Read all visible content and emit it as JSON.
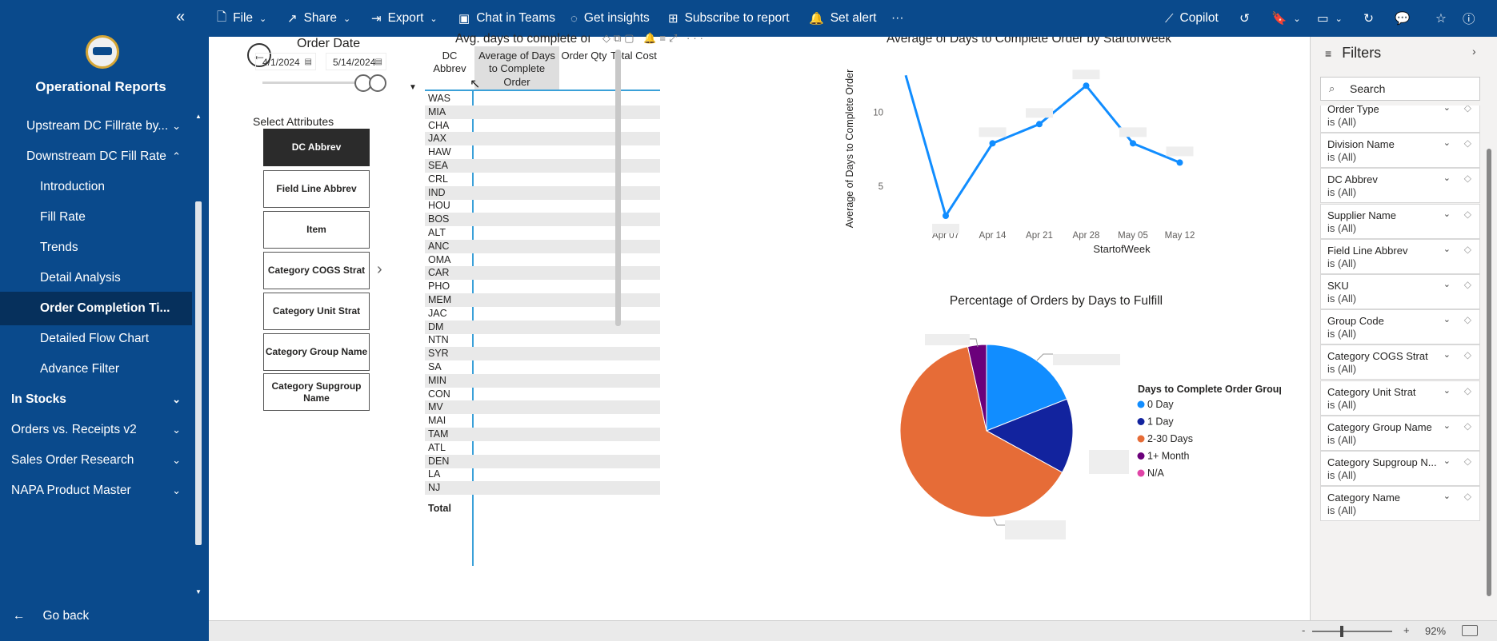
{
  "sidebar": {
    "collapse_glyph": "«",
    "app_title": "Operational Reports",
    "items": [
      {
        "label": "Upstream DC Fillrate by...",
        "indent": 1,
        "chev": "⌄",
        "active": false,
        "bold": false
      },
      {
        "label": "Downstream DC Fill Rate",
        "indent": 1,
        "chev": "⌃",
        "active": false,
        "bold": false
      },
      {
        "label": "Introduction",
        "indent": 2,
        "chev": "",
        "active": false,
        "bold": false
      },
      {
        "label": "Fill Rate",
        "indent": 2,
        "chev": "",
        "active": false,
        "bold": false
      },
      {
        "label": "Trends",
        "indent": 2,
        "chev": "",
        "active": false,
        "bold": false
      },
      {
        "label": "Detail Analysis",
        "indent": 2,
        "chev": "",
        "active": false,
        "bold": false
      },
      {
        "label": "Order Completion Ti...",
        "indent": 2,
        "chev": "",
        "active": true,
        "bold": true
      },
      {
        "label": "Detailed Flow Chart",
        "indent": 2,
        "chev": "",
        "active": false,
        "bold": false
      },
      {
        "label": "Advance Filter",
        "indent": 2,
        "chev": "",
        "active": false,
        "bold": false
      },
      {
        "label": "In Stocks",
        "indent": 0,
        "chev": "⌄",
        "active": false,
        "bold": true
      },
      {
        "label": "Orders vs. Receipts v2",
        "indent": 0,
        "chev": "⌄",
        "active": false,
        "bold": false
      },
      {
        "label": "Sales Order Research",
        "indent": 0,
        "chev": "⌄",
        "active": false,
        "bold": false
      },
      {
        "label": "NAPA Product Master",
        "indent": 0,
        "chev": "⌄",
        "active": false,
        "bold": false
      }
    ],
    "go_back": "Go back"
  },
  "toolbar": {
    "file": "File",
    "share": "Share",
    "export": "Export",
    "chat_in_teams": "Chat in Teams",
    "get_insights": "Get insights",
    "subscribe": "Subscribe to report",
    "set_alert": "Set alert",
    "more": "···",
    "copilot": "Copilot"
  },
  "slicer": {
    "title": "Order Date",
    "start_date": "4/1/2024",
    "end_date": "5/14/2024"
  },
  "attributes": {
    "title": "Select Attributes",
    "buttons": [
      {
        "label": "DC Abbrev",
        "selected": true
      },
      {
        "label": "Field Line Abbrev",
        "selected": false
      },
      {
        "label": "Item",
        "selected": false
      },
      {
        "label": "Category COGS Strat",
        "selected": false
      },
      {
        "label": "Category Unit Strat",
        "selected": false
      },
      {
        "label": "Category Group Name",
        "selected": false
      },
      {
        "label": "Category Supgroup Name",
        "selected": false
      }
    ]
  },
  "table": {
    "title": "Avg. days to complete oı",
    "toolbar_glyphs": "◇⧉▢ 🔔≡⤢",
    "more_glyph": "···",
    "headers": {
      "dc": "DC Abbrev",
      "avg": "Average of Days to Complete Order",
      "qty": "Order Qty",
      "cost": "Total Cost"
    },
    "rows": [
      "WAS",
      "MIA",
      "CHA",
      "JAX",
      "HAW",
      "SEA",
      "CRL",
      "IND",
      "HOU",
      "BOS",
      "ALT",
      "ANC",
      "OMA",
      "CAR",
      "PHO",
      "MEM",
      "JAC",
      "DM",
      "NTN",
      "SYR",
      "SA",
      "MIN",
      "CON",
      "MV",
      "MAI",
      "TAM",
      "ATL",
      "DEN",
      "LA",
      "NJ"
    ],
    "total": "Total"
  },
  "chart_data": [
    {
      "type": "line",
      "title": "Average of Days to Complete Order by StartofWeek",
      "xlabel": "StartofWeek",
      "ylabel": "Average of Days to Complete Order",
      "categories": [
        "Apr 07",
        "Apr 14",
        "Apr 21",
        "Apr 28",
        "May 05",
        "May 12"
      ],
      "x_start_value": 12.5,
      "values": [
        3.0,
        7.9,
        9.2,
        11.8,
        7.9,
        6.6
      ],
      "yticks": [
        5,
        10
      ],
      "ylim": [
        2,
        13
      ],
      "color": "#118dff",
      "grid": false
    },
    {
      "type": "pie",
      "title": "Percentage of Orders by Days to Fulfill",
      "legend_title": "Days to Complete Order Group",
      "legend_position": "right",
      "slices": [
        {
          "label": "0 Day",
          "value": 19,
          "color": "#118dff"
        },
        {
          "label": "1 Day",
          "value": 14,
          "color": "#12239e"
        },
        {
          "label": "2-30 Days",
          "value": 63.5,
          "color": "#e66c37"
        },
        {
          "label": "1+ Month",
          "value": 3.5,
          "color": "#6b007b"
        },
        {
          "label": "N/A",
          "value": 0,
          "color": "#e044a7"
        }
      ]
    }
  ],
  "filters": {
    "title": "Filters",
    "search_placeholder": "Search",
    "cards": [
      {
        "name": "Order Type",
        "value": "is (All)"
      },
      {
        "name": "Division Name",
        "value": "is (All)"
      },
      {
        "name": "DC Abbrev",
        "value": "is (All)"
      },
      {
        "name": "Supplier Name",
        "value": "is (All)"
      },
      {
        "name": "Field Line Abbrev",
        "value": "is (All)"
      },
      {
        "name": "SKU",
        "value": "is (All)"
      },
      {
        "name": "Group Code",
        "value": "is (All)"
      },
      {
        "name": "Category COGS Strat",
        "value": "is (All)"
      },
      {
        "name": "Category Unit Strat",
        "value": "is (All)"
      },
      {
        "name": "Category Group Name",
        "value": "is (All)"
      },
      {
        "name": "Category Supgroup N...",
        "value": "is (All)"
      },
      {
        "name": "Category Name",
        "value": "is (All)"
      }
    ]
  },
  "status": {
    "zoom": "92%",
    "minus": "-",
    "plus": "+"
  }
}
